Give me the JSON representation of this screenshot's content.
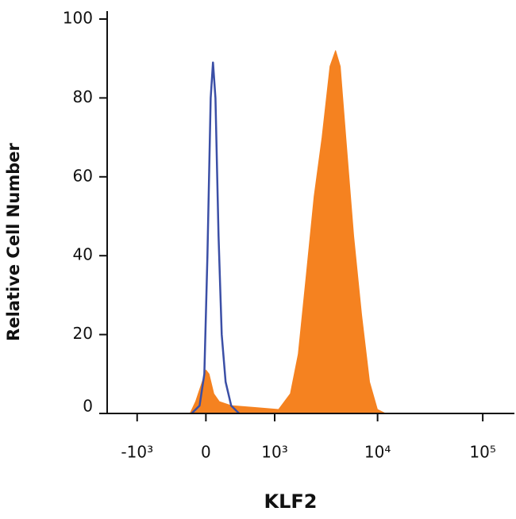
{
  "chart_data": {
    "type": "histogram-overlay",
    "x_label": "KLF2",
    "y_label": "Relative Cell Number",
    "xscale": "biexponential",
    "xlim": [
      -2000,
      200000
    ],
    "xticks": [
      {
        "value": -1000,
        "label": "-10³"
      },
      0,
      {
        "value": 1000,
        "label": "10³"
      },
      {
        "value": 10000,
        "label": "10⁴"
      },
      {
        "value": 100000,
        "label": "10⁵"
      }
    ],
    "ylim": [
      0,
      100
    ],
    "yticks": [
      0,
      20,
      40,
      60,
      80,
      100
    ],
    "series": [
      {
        "color": "#f58220",
        "style": "area",
        "x": [
          -165,
          -106,
          -65,
          -24,
          0,
          32,
          81,
          139,
          272,
          603,
          1097,
          1448,
          1733,
          2075,
          2475,
          2951,
          3516,
          3974,
          4408,
          4978,
          5922,
          7042,
          8378,
          9961,
          11843
        ],
        "values": [
          0,
          3,
          6,
          9,
          11,
          10,
          5,
          3,
          2,
          1.5,
          1,
          5,
          15,
          35,
          55,
          70,
          88,
          92,
          88,
          70,
          45,
          25,
          8,
          1,
          0
        ]
      },
      {
        "color": "#3b4fa6",
        "style": "line",
        "x": [
          -148,
          -65,
          -16,
          16,
          49,
          73,
          98,
          131,
          165,
          208,
          272,
          370
        ],
        "values": [
          0,
          2,
          10,
          40,
          80,
          89,
          80,
          45,
          20,
          8,
          2,
          0
        ]
      }
    ]
  }
}
